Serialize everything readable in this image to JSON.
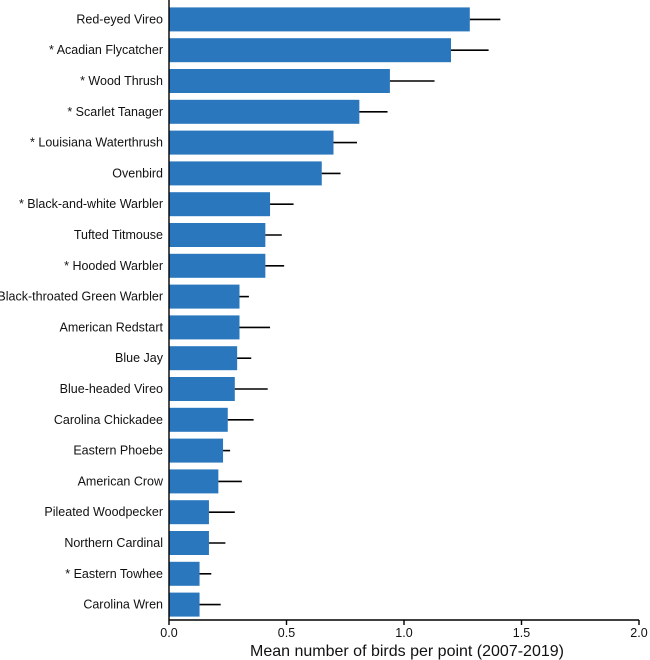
{
  "chart_data": {
    "type": "bar",
    "orientation": "horizontal",
    "title": "",
    "xlabel": "Mean number of birds per point (2007-2019)",
    "ylabel": "",
    "xlim": [
      0,
      2.0
    ],
    "x_ticks": [
      "0.0",
      "0.5",
      "1.0",
      "1.5",
      "2.0"
    ],
    "x_tick_values": [
      0,
      0.5,
      1.0,
      1.5,
      2.0
    ],
    "grid": false,
    "legend": "none",
    "bar_color": "#2a77bd",
    "error_bar_color": "#000000",
    "categories": [
      "Red-eyed Vireo",
      "* Acadian Flycatcher",
      "* Wood Thrush",
      "* Scarlet Tanager",
      "* Louisiana Waterthrush",
      "Ovenbird",
      "* Black-and-white Warbler",
      "Tufted Titmouse",
      "* Hooded Warbler",
      "Black-throated Green Warbler",
      "American Redstart",
      "Blue Jay",
      "Blue-headed Vireo",
      "Carolina Chickadee",
      "Eastern Phoebe",
      "American Crow",
      "Pileated Woodpecker",
      "Northern Cardinal",
      "* Eastern Towhee",
      "Carolina Wren"
    ],
    "values": [
      1.28,
      1.2,
      0.94,
      0.81,
      0.7,
      0.65,
      0.43,
      0.41,
      0.41,
      0.3,
      0.3,
      0.29,
      0.28,
      0.25,
      0.23,
      0.21,
      0.17,
      0.17,
      0.13,
      0.13
    ],
    "error_upper": [
      1.41,
      1.36,
      1.13,
      0.93,
      0.8,
      0.73,
      0.53,
      0.48,
      0.49,
      0.34,
      0.43,
      0.35,
      0.42,
      0.36,
      0.26,
      0.31,
      0.28,
      0.24,
      0.18,
      0.22
    ]
  }
}
